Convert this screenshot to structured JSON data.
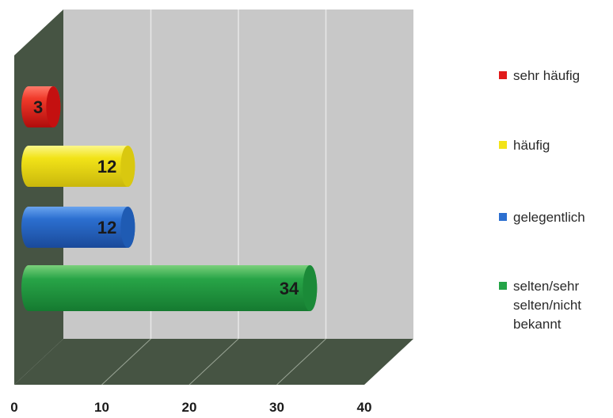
{
  "chart_data": {
    "type": "bar",
    "orientation": "horizontal",
    "style": "3d-cylinder",
    "categories": [
      "sehr häufig",
      "häufig",
      "gelegentlich",
      "selten/sehr selten/nicht bekannt"
    ],
    "values": [
      3,
      12,
      12,
      34
    ],
    "colors": [
      "#e11a1a",
      "#f2e318",
      "#2c6fd0",
      "#24a447"
    ],
    "xlim": [
      0,
      40
    ],
    "x_ticks": [
      "0",
      "10",
      "20",
      "30",
      "40"
    ],
    "grid": true,
    "legend_position": "right",
    "title": "",
    "xlabel": "",
    "ylabel": ""
  },
  "legend": [
    {
      "label": "sehr häufig",
      "color": "#e11a1a"
    },
    {
      "label": "häufig",
      "color": "#f2e318"
    },
    {
      "label": "gelegentlich",
      "color": "#2c6fd0"
    },
    {
      "label": "selten/sehr selten/nicht bekannt",
      "color": "#24a447"
    }
  ]
}
